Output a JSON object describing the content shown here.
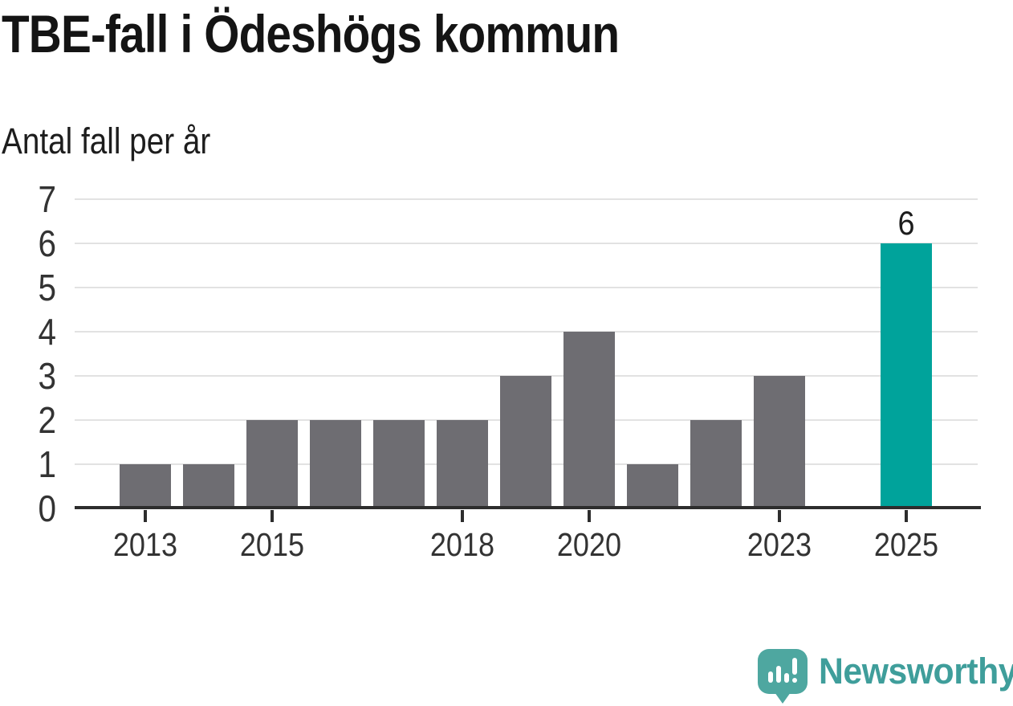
{
  "header": {
    "title": "TBE-fall i Ödeshögs kommun",
    "subtitle": "Antal fall per år"
  },
  "chart_data": {
    "type": "bar",
    "title": "TBE-fall i Ödeshögs kommun",
    "ylabel": "Antal fall per år",
    "xlabel": "",
    "categories": [
      "2013",
      "2014",
      "2015",
      "2016",
      "2017",
      "2018",
      "2019",
      "2020",
      "2021",
      "2022",
      "2023",
      "2024",
      "2025"
    ],
    "values": [
      1,
      1,
      2,
      2,
      2,
      2,
      3,
      4,
      1,
      2,
      3,
      0,
      6
    ],
    "ylim": [
      0,
      7
    ],
    "yticks": [
      0,
      1,
      2,
      3,
      4,
      5,
      6,
      7
    ],
    "xticks_shown": [
      "2013",
      "2015",
      "2018",
      "2020",
      "2023",
      "2025"
    ],
    "grid": true,
    "legend": "none",
    "highlight_index": 12,
    "data_labels": [
      {
        "index": 12,
        "text": "6"
      }
    ],
    "colors": {
      "bar": "#6e6d72",
      "highlight": "#00a39b",
      "gridline": "#e2e2e2",
      "axis": "#2d2d2d",
      "tick_label": "#333333"
    }
  },
  "footer": {
    "logo_icon": "newsworthy-bar-chart-speech-bubble-icon",
    "logo_text": "Newsworthy",
    "logo_icon_color": "#4ea7a0",
    "logo_text_color": "#3f9e9b"
  }
}
